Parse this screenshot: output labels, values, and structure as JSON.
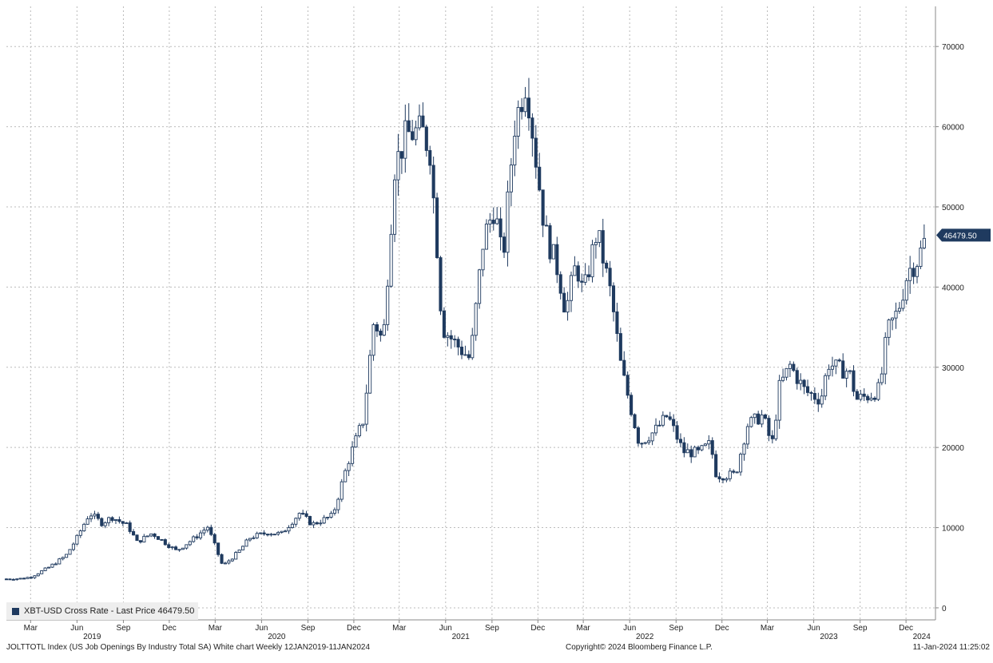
{
  "legend": {
    "label": "XBT-USD Cross Rate - Last Price 46479.50",
    "swatch_color": "#1f3a5f"
  },
  "footer": {
    "left": "JOLTTOTL Index (US Job Openings By Industry Total SA) White chart  Weekly 12JAN2019-11JAN2024",
    "center": "Copyright© 2024 Bloomberg Finance L.P.",
    "right": "11-Jan-2024 11:25:02"
  },
  "chart_data": {
    "type": "candlestick",
    "title": "",
    "series_name": "XBT-USD Cross Rate - Last Price",
    "last_price": 46479.5,
    "last_price_label": "46479.50",
    "y_axis": {
      "position": "right",
      "ylim": [
        -1500,
        75000
      ],
      "ticks": [
        0,
        10000,
        20000,
        30000,
        40000,
        50000,
        60000,
        70000
      ]
    },
    "x_axis": {
      "start": "2019-01-12",
      "end": "2024-01-11",
      "month_ticks": [
        {
          "label": "Mar",
          "date": "2019-03-01"
        },
        {
          "label": "Jun",
          "date": "2019-06-01"
        },
        {
          "label": "Sep",
          "date": "2019-09-01"
        },
        {
          "label": "Dec",
          "date": "2019-12-01"
        },
        {
          "label": "Mar",
          "date": "2020-03-01"
        },
        {
          "label": "Jun",
          "date": "2020-06-01"
        },
        {
          "label": "Sep",
          "date": "2020-09-01"
        },
        {
          "label": "Dec",
          "date": "2020-12-01"
        },
        {
          "label": "Mar",
          "date": "2021-03-01"
        },
        {
          "label": "Jun",
          "date": "2021-06-01"
        },
        {
          "label": "Sep",
          "date": "2021-09-01"
        },
        {
          "label": "Dec",
          "date": "2021-12-01"
        },
        {
          "label": "Mar",
          "date": "2022-03-01"
        },
        {
          "label": "Jun",
          "date": "2022-06-01"
        },
        {
          "label": "Sep",
          "date": "2022-09-01"
        },
        {
          "label": "Dec",
          "date": "2022-12-01"
        },
        {
          "label": "Mar",
          "date": "2023-03-01"
        },
        {
          "label": "Jun",
          "date": "2023-06-01"
        },
        {
          "label": "Sep",
          "date": "2023-09-01"
        },
        {
          "label": "Dec",
          "date": "2023-12-01"
        }
      ],
      "year_labels": [
        {
          "label": "2019",
          "date": "2019-07-01"
        },
        {
          "label": "2020",
          "date": "2020-07-01"
        },
        {
          "label": "2021",
          "date": "2021-07-01"
        },
        {
          "label": "2022",
          "date": "2022-07-01"
        },
        {
          "label": "2023",
          "date": "2023-07-01"
        },
        {
          "label": "2024",
          "date": "2024-01-01"
        }
      ]
    },
    "grid": true,
    "colors": {
      "candle": "#1f3a5f",
      "grid": "#bbbbbb",
      "label_bg": "#1f3a5f"
    },
    "anchors": [
      {
        "date": "2019-01-12",
        "close": 3600
      },
      {
        "date": "2019-02-10",
        "close": 3650
      },
      {
        "date": "2019-03-01",
        "close": 3850
      },
      {
        "date": "2019-04-05",
        "close": 5000
      },
      {
        "date": "2019-05-10",
        "close": 6500
      },
      {
        "date": "2019-05-30",
        "close": 8500
      },
      {
        "date": "2019-06-26",
        "close": 11800
      },
      {
        "date": "2019-07-20",
        "close": 10600
      },
      {
        "date": "2019-08-10",
        "close": 11300
      },
      {
        "date": "2019-09-10",
        "close": 10200
      },
      {
        "date": "2019-09-28",
        "close": 8200
      },
      {
        "date": "2019-10-28",
        "close": 9300
      },
      {
        "date": "2019-12-15",
        "close": 7100
      },
      {
        "date": "2020-01-20",
        "close": 8700
      },
      {
        "date": "2020-02-15",
        "close": 10100
      },
      {
        "date": "2020-03-16",
        "close": 5200
      },
      {
        "date": "2020-04-15",
        "close": 6900
      },
      {
        "date": "2020-05-10",
        "close": 8800
      },
      {
        "date": "2020-06-15",
        "close": 9400
      },
      {
        "date": "2020-07-10",
        "close": 9200
      },
      {
        "date": "2020-08-15",
        "close": 11800
      },
      {
        "date": "2020-09-10",
        "close": 10400
      },
      {
        "date": "2020-10-20",
        "close": 11500
      },
      {
        "date": "2020-11-20",
        "close": 18300
      },
      {
        "date": "2020-12-20",
        "close": 23500
      },
      {
        "date": "2021-01-10",
        "close": 36000
      },
      {
        "date": "2021-01-28",
        "close": 33000
      },
      {
        "date": "2021-02-20",
        "close": 55000
      },
      {
        "date": "2021-03-15",
        "close": 59000
      },
      {
        "date": "2021-04-15",
        "close": 59500
      },
      {
        "date": "2021-05-01",
        "close": 57000
      },
      {
        "date": "2021-05-15",
        "close": 45000
      },
      {
        "date": "2021-05-25",
        "close": 35000
      },
      {
        "date": "2021-06-20",
        "close": 33000
      },
      {
        "date": "2021-07-20",
        "close": 31000
      },
      {
        "date": "2021-08-15",
        "close": 46000
      },
      {
        "date": "2021-09-06",
        "close": 50000
      },
      {
        "date": "2021-09-22",
        "close": 43000
      },
      {
        "date": "2021-10-15",
        "close": 60000
      },
      {
        "date": "2021-11-08",
        "close": 66000
      },
      {
        "date": "2021-11-25",
        "close": 57000
      },
      {
        "date": "2021-12-15",
        "close": 47000
      },
      {
        "date": "2022-01-10",
        "close": 42000
      },
      {
        "date": "2022-01-25",
        "close": 37000
      },
      {
        "date": "2022-02-15",
        "close": 43000
      },
      {
        "date": "2022-03-01",
        "close": 39000
      },
      {
        "date": "2022-03-28",
        "close": 47000
      },
      {
        "date": "2022-04-25",
        "close": 39000
      },
      {
        "date": "2022-05-15",
        "close": 30000
      },
      {
        "date": "2022-06-20",
        "close": 20500
      },
      {
        "date": "2022-07-20",
        "close": 22000
      },
      {
        "date": "2022-08-15",
        "close": 24000
      },
      {
        "date": "2022-09-15",
        "close": 19500
      },
      {
        "date": "2022-10-15",
        "close": 19300
      },
      {
        "date": "2022-11-08",
        "close": 20500
      },
      {
        "date": "2022-11-20",
        "close": 16500
      },
      {
        "date": "2022-12-28",
        "close": 16600
      },
      {
        "date": "2023-01-20",
        "close": 22800
      },
      {
        "date": "2023-02-20",
        "close": 24000
      },
      {
        "date": "2023-03-10",
        "close": 20200
      },
      {
        "date": "2023-03-25",
        "close": 27500
      },
      {
        "date": "2023-04-15",
        "close": 30200
      },
      {
        "date": "2023-05-15",
        "close": 27000
      },
      {
        "date": "2023-06-15",
        "close": 26000
      },
      {
        "date": "2023-06-30",
        "close": 30500
      },
      {
        "date": "2023-07-20",
        "close": 29800
      },
      {
        "date": "2023-08-10",
        "close": 29500
      },
      {
        "date": "2023-08-25",
        "close": 26000
      },
      {
        "date": "2023-09-20",
        "close": 26500
      },
      {
        "date": "2023-10-10",
        "close": 27300
      },
      {
        "date": "2023-10-25",
        "close": 34500
      },
      {
        "date": "2023-11-15",
        "close": 37000
      },
      {
        "date": "2023-12-05",
        "close": 42000
      },
      {
        "date": "2023-12-25",
        "close": 43500
      },
      {
        "date": "2024-01-11",
        "close": 46479.5
      }
    ]
  }
}
